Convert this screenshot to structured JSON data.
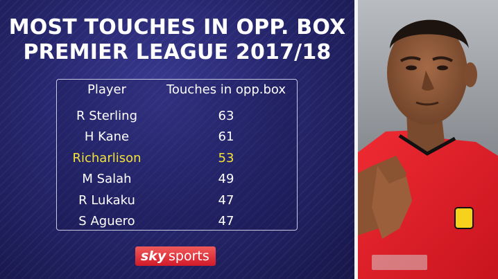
{
  "title": {
    "line1": "MOST TOUCHES IN OPP. BOX",
    "line2": "PREMIER LEAGUE 2017/18"
  },
  "table": {
    "headers": {
      "player": "Player",
      "touches": "Touches in opp.box"
    },
    "rows": [
      {
        "player": "R Sterling",
        "touches": "63"
      },
      {
        "player": "H Kane",
        "touches": "61"
      },
      {
        "player": "Richarlison",
        "touches": "53"
      },
      {
        "player": "M Salah",
        "touches": "49"
      },
      {
        "player": "R Lukaku",
        "touches": "47"
      },
      {
        "player": "S Aguero",
        "touches": "47"
      }
    ]
  },
  "logo": {
    "sky": "sky",
    "sports": "sports",
    "brand_color": "#d11a2a"
  },
  "highlight_color": "#f3e23a",
  "background_color": "#26266e",
  "photo": {
    "subject": "player-photo",
    "kit_color": "#e3202b",
    "badge_name": "watford-badge"
  }
}
